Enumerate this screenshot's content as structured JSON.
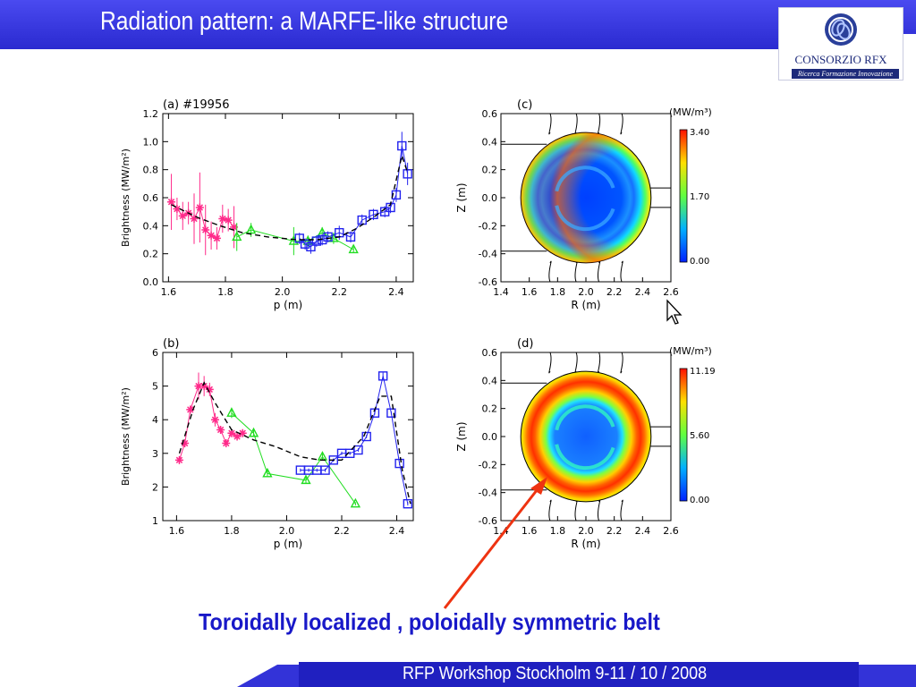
{
  "slide": {
    "title": "Radiation pattern: a MARFE-like structure",
    "caption": "Toroidally localized , poloidally symmetric belt",
    "footer": "RFP Workshop Stockholm 9-11 / 10 / 2008",
    "logo_name": "CONSORZIO RFX",
    "logo_tagline": "Ricerca Formazione Innovazione",
    "colors": {
      "title_bar": "#3333dd",
      "caption": "#1818c8",
      "arrow": "#ee3311"
    }
  },
  "chart_data": [
    {
      "type": "scatter",
      "panel": "(a)",
      "title": "#19956",
      "xlabel": "p (m)",
      "ylabel": "Brightness (MW/m²)",
      "xlim": [
        1.58,
        2.46
      ],
      "ylim": [
        0.0,
        1.2
      ],
      "xticks": [
        "1.6",
        "1.8",
        "2.0",
        "2.2",
        "2.4"
      ],
      "yticks": [
        "0.0",
        "0.2",
        "0.4",
        "0.6",
        "0.8",
        "1.0",
        "1.2"
      ],
      "series": [
        {
          "marker": "star",
          "color": "#ff2a8a",
          "x": [
            1.61,
            1.63,
            1.65,
            1.67,
            1.69,
            1.71,
            1.73,
            1.75,
            1.77,
            1.79,
            1.81,
            1.83
          ],
          "y": [
            0.57,
            0.52,
            0.47,
            0.49,
            0.45,
            0.53,
            0.37,
            0.33,
            0.31,
            0.45,
            0.44,
            0.39
          ],
          "err": [
            0.2,
            0.08,
            0.1,
            0.08,
            0.18,
            0.25,
            0.18,
            0.1,
            0.08,
            0.1,
            0.08,
            0.15
          ]
        },
        {
          "marker": "triangle",
          "color": "#22dd22",
          "x": [
            1.84,
            1.89,
            2.04,
            2.09,
            2.14,
            2.18,
            2.25
          ],
          "y": [
            0.32,
            0.37,
            0.29,
            0.29,
            0.35,
            0.31,
            0.23
          ],
          "err": [
            0.1,
            0.05,
            0.1,
            0.04,
            0.04,
            0.04,
            0.02
          ]
        },
        {
          "marker": "square",
          "color": "#2222ee",
          "x": [
            2.06,
            2.08,
            2.1,
            2.12,
            2.14,
            2.16,
            2.2,
            2.24,
            2.28,
            2.32,
            2.36,
            2.38,
            2.4,
            2.42,
            2.44
          ],
          "y": [
            0.31,
            0.27,
            0.25,
            0.29,
            0.3,
            0.32,
            0.35,
            0.32,
            0.44,
            0.48,
            0.5,
            0.53,
            0.62,
            0.97,
            0.77
          ],
          "err": [
            0.04,
            0.04,
            0.05,
            0.04,
            0.04,
            0.04,
            0.05,
            0.04,
            0.04,
            0.04,
            0.04,
            0.04,
            0.05,
            0.1,
            0.08
          ]
        },
        {
          "marker": "none",
          "style": "dashed",
          "color": "#000000",
          "x": [
            1.61,
            1.7,
            1.78,
            1.86,
            1.95,
            2.05,
            2.12,
            2.2,
            2.26,
            2.32,
            2.38,
            2.42,
            2.44
          ],
          "y": [
            0.55,
            0.46,
            0.4,
            0.35,
            0.32,
            0.3,
            0.3,
            0.32,
            0.38,
            0.46,
            0.55,
            0.9,
            0.78
          ]
        }
      ]
    },
    {
      "type": "heatmap",
      "panel": "(c)",
      "xlabel": "R (m)",
      "ylabel": "Z (m)",
      "xlim": [
        1.4,
        2.6
      ],
      "ylim": [
        -0.6,
        0.6
      ],
      "xticks": [
        "1.4",
        "1.6",
        "1.8",
        "2.0",
        "2.2",
        "2.4",
        "2.6"
      ],
      "yticks": [
        "-0.6",
        "-0.4",
        "-0.2",
        "0.0",
        "0.2",
        "0.4",
        "0.6"
      ],
      "colorbar": {
        "unit": "(MW/m³)",
        "min": "0.00",
        "mid": "1.70",
        "max": "3.40"
      },
      "center_R": 2.0,
      "radius": 0.46
    },
    {
      "type": "scatter",
      "panel": "(b)",
      "xlabel": "p (m)",
      "ylabel": "Brightness (MW/m²)",
      "xlim": [
        1.55,
        2.46
      ],
      "ylim": [
        1,
        6
      ],
      "xticks": [
        "1.6",
        "1.8",
        "2.0",
        "2.2",
        "2.4"
      ],
      "yticks": [
        "1",
        "2",
        "3",
        "4",
        "5",
        "6"
      ],
      "series": [
        {
          "marker": "star",
          "color": "#ff2a8a",
          "x": [
            1.61,
            1.63,
            1.65,
            1.68,
            1.7,
            1.72,
            1.74,
            1.76,
            1.78,
            1.8,
            1.82,
            1.84
          ],
          "y": [
            2.8,
            3.3,
            4.3,
            5.0,
            5.0,
            4.9,
            4.0,
            3.7,
            3.3,
            3.6,
            3.5,
            3.6
          ],
          "err": [
            0.1,
            0.1,
            0.1,
            0.4,
            0.3,
            0.2,
            0.2,
            0.1,
            0.1,
            0.1,
            0.1,
            0.1
          ]
        },
        {
          "marker": "triangle",
          "color": "#22dd22",
          "x": [
            1.8,
            1.88,
            1.93,
            2.07,
            2.13,
            2.25
          ],
          "y": [
            4.2,
            3.6,
            2.4,
            2.2,
            2.9,
            1.5
          ],
          "err": [
            0.15,
            0.1,
            0.1,
            0.1,
            0.1,
            0.05
          ]
        },
        {
          "marker": "square",
          "color": "#2222ee",
          "x": [
            2.05,
            2.08,
            2.11,
            2.14,
            2.17,
            2.2,
            2.23,
            2.26,
            2.29,
            2.32,
            2.35,
            2.38,
            2.41,
            2.44
          ],
          "y": [
            2.5,
            2.5,
            2.5,
            2.5,
            2.8,
            3.0,
            3.0,
            3.1,
            3.5,
            4.2,
            5.3,
            4.2,
            2.7,
            1.5
          ],
          "err": [
            0.05,
            0.05,
            0.05,
            0.05,
            0.05,
            0.05,
            0.05,
            0.05,
            0.05,
            0.05,
            0.1,
            0.05,
            0.05,
            0.05
          ]
        },
        {
          "marker": "none",
          "style": "dashed",
          "color": "#000000",
          "x": [
            1.61,
            1.66,
            1.7,
            1.74,
            1.8,
            1.88,
            1.96,
            2.05,
            2.12,
            2.2,
            2.28,
            2.34,
            2.38,
            2.42,
            2.45
          ],
          "y": [
            3.0,
            4.3,
            5.1,
            4.5,
            3.7,
            3.4,
            3.2,
            2.9,
            2.8,
            2.8,
            3.5,
            4.7,
            4.7,
            2.5,
            1.5
          ]
        }
      ]
    },
    {
      "type": "heatmap",
      "panel": "(d)",
      "xlabel": "R (m)",
      "ylabel": "Z (m)",
      "xlim": [
        1.4,
        2.6
      ],
      "ylim": [
        -0.6,
        0.6
      ],
      "xticks": [
        "1.4",
        "1.6",
        "1.8",
        "2.0",
        "2.2",
        "2.4",
        "2.6"
      ],
      "yticks": [
        "-0.6",
        "-0.4",
        "-0.2",
        "0.0",
        "0.2",
        "0.4",
        "0.6"
      ],
      "colorbar": {
        "unit": "(MW/m³)",
        "min": "0.00",
        "mid": "5.60",
        "max": "11.19"
      },
      "center_R": 2.0,
      "radius": 0.46
    }
  ]
}
